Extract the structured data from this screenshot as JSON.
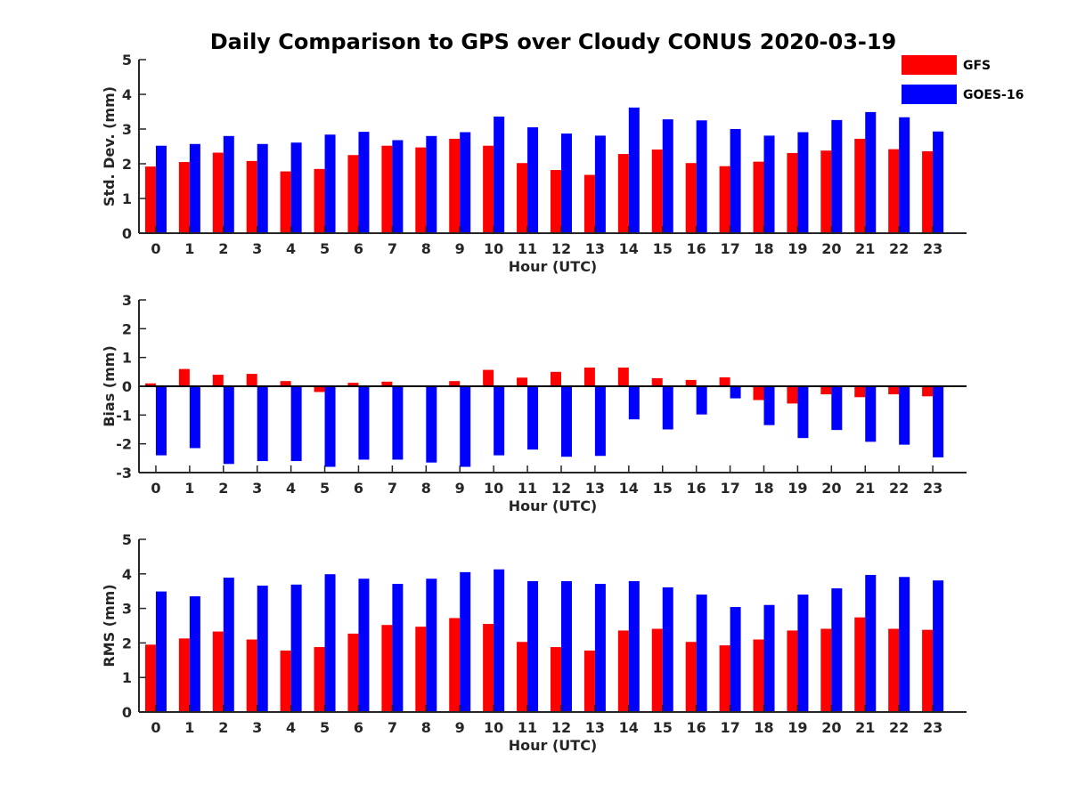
{
  "title": "Daily Comparison to GPS over Cloudy CONUS 2020-03-19",
  "legend": [
    {
      "name": "GFS",
      "color": "#ff0000"
    },
    {
      "name": "GOES-16",
      "color": "#0000ff"
    }
  ],
  "chart_data": [
    {
      "type": "bar",
      "xlabel": "Hour (UTC)",
      "ylabel": "Std. Dev. (mm)",
      "ylim": [
        0,
        5
      ],
      "yticks": [
        0,
        1,
        2,
        3,
        4,
        5
      ],
      "categories": [
        "0",
        "1",
        "2",
        "3",
        "4",
        "5",
        "6",
        "7",
        "8",
        "9",
        "10",
        "11",
        "12",
        "13",
        "14",
        "15",
        "16",
        "17",
        "18",
        "19",
        "20",
        "21",
        "22",
        "23"
      ],
      "series": [
        {
          "name": "GFS",
          "color": "#ff0000",
          "values": [
            1.92,
            2.05,
            2.32,
            2.08,
            1.78,
            1.85,
            2.25,
            2.52,
            2.47,
            2.72,
            2.52,
            2.02,
            1.82,
            1.68,
            2.28,
            2.41,
            2.02,
            1.93,
            2.06,
            2.31,
            2.38,
            2.72,
            2.42,
            2.36
          ]
        },
        {
          "name": "GOES-16",
          "color": "#0000ff",
          "values": [
            2.52,
            2.57,
            2.8,
            2.57,
            2.61,
            2.84,
            2.92,
            2.68,
            2.8,
            2.91,
            3.36,
            3.05,
            2.87,
            2.81,
            3.62,
            3.28,
            3.25,
            3.0,
            2.81,
            2.91,
            3.26,
            3.49,
            3.34,
            2.93
          ]
        }
      ]
    },
    {
      "type": "bar",
      "xlabel": "Hour (UTC)",
      "ylabel": "Bias (mm)",
      "ylim": [
        -3,
        3
      ],
      "yticks": [
        -3,
        -2,
        -1,
        0,
        1,
        2,
        3
      ],
      "categories": [
        "0",
        "1",
        "2",
        "3",
        "4",
        "5",
        "6",
        "7",
        "8",
        "9",
        "10",
        "11",
        "12",
        "13",
        "14",
        "15",
        "16",
        "17",
        "18",
        "19",
        "20",
        "21",
        "22",
        "23"
      ],
      "series": [
        {
          "name": "GFS",
          "color": "#ff0000",
          "values": [
            0.1,
            0.6,
            0.4,
            0.43,
            0.18,
            -0.2,
            0.12,
            0.16,
            0.03,
            0.18,
            0.57,
            0.3,
            0.5,
            0.65,
            0.65,
            0.28,
            0.22,
            0.31,
            -0.48,
            -0.6,
            -0.28,
            -0.38,
            -0.28,
            -0.35
          ]
        },
        {
          "name": "GOES-16",
          "color": "#0000ff",
          "values": [
            -2.4,
            -2.15,
            -2.7,
            -2.6,
            -2.6,
            -2.8,
            -2.55,
            -2.55,
            -2.65,
            -2.8,
            -2.4,
            -2.2,
            -2.45,
            -2.42,
            -1.15,
            -1.5,
            -0.98,
            -0.42,
            -1.35,
            -1.8,
            -1.52,
            -1.93,
            -2.03,
            -2.47
          ]
        }
      ]
    },
    {
      "type": "bar",
      "xlabel": "Hour (UTC)",
      "ylabel": "RMS (mm)",
      "ylim": [
        0,
        5
      ],
      "yticks": [
        0,
        1,
        2,
        3,
        4,
        5
      ],
      "categories": [
        "0",
        "1",
        "2",
        "3",
        "4",
        "5",
        "6",
        "7",
        "8",
        "9",
        "10",
        "11",
        "12",
        "13",
        "14",
        "15",
        "16",
        "17",
        "18",
        "19",
        "20",
        "21",
        "22",
        "23"
      ],
      "series": [
        {
          "name": "GFS",
          "color": "#ff0000",
          "values": [
            1.95,
            2.13,
            2.33,
            2.1,
            1.78,
            1.88,
            2.27,
            2.52,
            2.47,
            2.72,
            2.55,
            2.03,
            1.88,
            1.78,
            2.36,
            2.41,
            2.03,
            1.93,
            2.1,
            2.36,
            2.41,
            2.74,
            2.41,
            2.38
          ]
        },
        {
          "name": "GOES-16",
          "color": "#0000ff",
          "values": [
            3.49,
            3.35,
            3.89,
            3.66,
            3.69,
            3.99,
            3.86,
            3.71,
            3.86,
            4.05,
            4.13,
            3.79,
            3.79,
            3.71,
            3.79,
            3.61,
            3.4,
            3.04,
            3.1,
            3.4,
            3.58,
            3.97,
            3.91,
            3.81
          ]
        }
      ]
    }
  ]
}
